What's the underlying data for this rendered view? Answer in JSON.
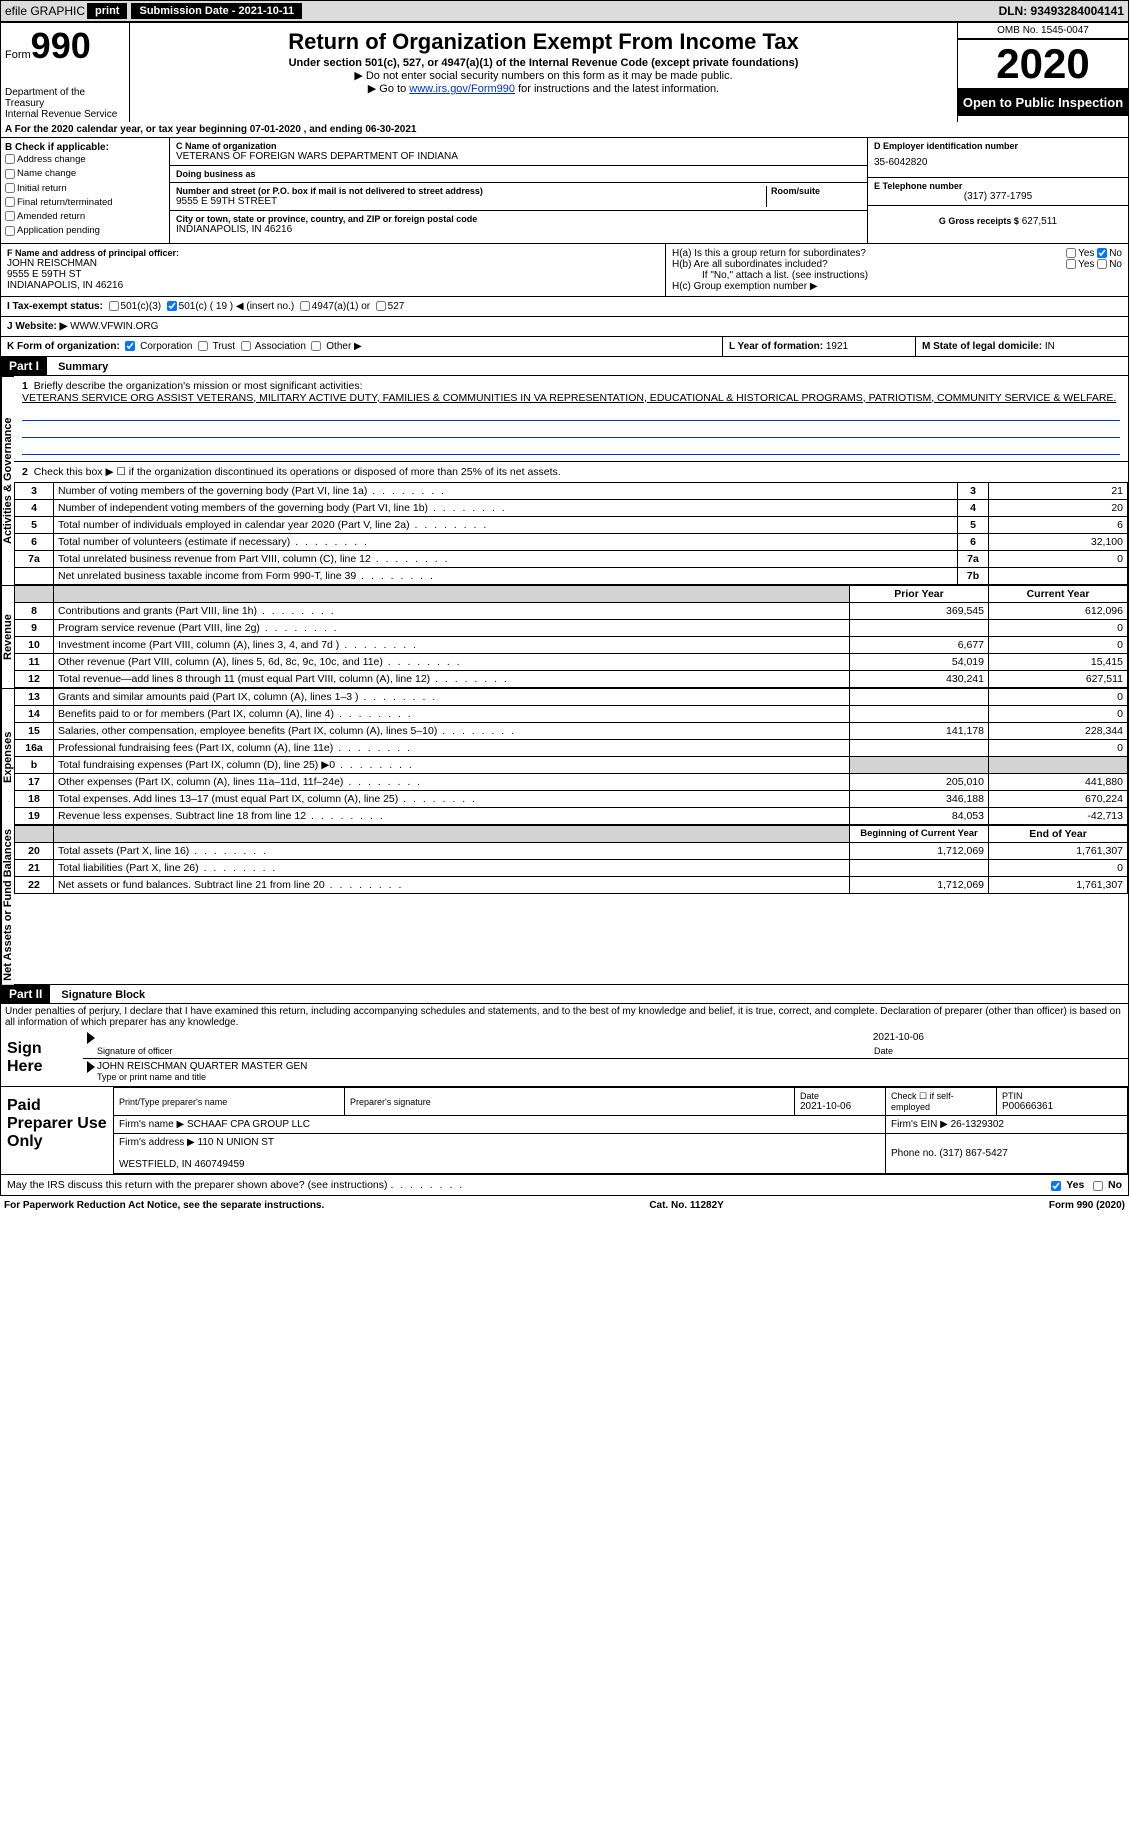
{
  "topbar": {
    "efile": "efile GRAPHIC",
    "print": "print",
    "sub_label": "Submission Date - 2021-10-11",
    "dln": "DLN: 93493284004141"
  },
  "header": {
    "form_label": "Form",
    "form_num": "990",
    "dept": "Department of the Treasury\nInternal Revenue Service",
    "title": "Return of Organization Exempt From Income Tax",
    "subtitle": "Under section 501(c), 527, or 4947(a)(1) of the Internal Revenue Code (except private foundations)",
    "note1": "▶ Do not enter social security numbers on this form as it may be made public.",
    "note2_pre": "▶ Go to ",
    "note2_link": "www.irs.gov/Form990",
    "note2_post": " for instructions and the latest information.",
    "omb": "OMB No. 1545-0047",
    "year": "2020",
    "open": "Open to Public Inspection"
  },
  "line_a": "A For the 2020 calendar year, or tax year beginning 07-01-2020   , and ending 06-30-2021",
  "box_b": {
    "title": "B Check if applicable:",
    "opts": [
      "Address change",
      "Name change",
      "Initial return",
      "Final return/terminated",
      "Amended return",
      "Application pending"
    ]
  },
  "box_c": {
    "name_lbl": "C Name of organization",
    "name": "VETERANS OF FOREIGN WARS DEPARTMENT OF INDIANA",
    "dba_lbl": "Doing business as",
    "dba": "",
    "addr_lbl": "Number and street (or P.O. box if mail is not delivered to street address)",
    "room_lbl": "Room/suite",
    "addr": "9555 E 59TH STREET",
    "city_lbl": "City or town, state or province, country, and ZIP or foreign postal code",
    "city": "INDIANAPOLIS, IN  46216"
  },
  "box_d": {
    "lbl": "D Employer identification number",
    "val": "35-6042820"
  },
  "box_e": {
    "lbl": "E Telephone number",
    "val": "(317) 377-1795"
  },
  "box_g": {
    "lbl": "G Gross receipts $",
    "val": "627,511"
  },
  "box_f": {
    "lbl": "F Name and address of principal officer:",
    "name": "JOHN REISCHMAN",
    "addr": "9555 E 59TH ST\nINDIANAPOLIS, IN  46216"
  },
  "box_h": {
    "a_lbl": "H(a)  Is this a group return for subordinates?",
    "a_yes": "Yes",
    "a_no": "No",
    "b_lbl": "H(b)  Are all subordinates included?",
    "b_note": "If \"No,\" attach a list. (see instructions)",
    "c_lbl": "H(c)  Group exemption number ▶"
  },
  "tax_status": {
    "lbl": "I    Tax-exempt status:",
    "o1": "501(c)(3)",
    "o2": "501(c) ( 19 ) ◀ (insert no.)",
    "o3": "4947(a)(1) or",
    "o4": "527"
  },
  "website": {
    "lbl": "J    Website: ▶",
    "val": "WWW.VFWIN.ORG"
  },
  "box_k": {
    "lbl": "K Form of organization:",
    "opts": [
      "Corporation",
      "Trust",
      "Association",
      "Other ▶"
    ]
  },
  "box_l": {
    "lbl": "L Year of formation:",
    "val": "1921"
  },
  "box_m": {
    "lbl": "M State of legal domicile:",
    "val": "IN"
  },
  "part1": {
    "header": "Part I",
    "title": "Summary",
    "side_gov": "Activities & Governance",
    "side_rev": "Revenue",
    "side_exp": "Expenses",
    "side_net": "Net Assets or Fund Balances",
    "q1": "Briefly describe the organization's mission or most significant activities:",
    "q1_ans": "VETERANS SERVICE ORG ASSIST VETERANS, MILITARY ACTIVE DUTY, FAMILIES & COMMUNITIES IN VA REPRESENTATION, EDUCATIONAL & HISTORICAL PROGRAMS, PATRIOTISM, COMMUNITY SERVICE & WELFARE.",
    "q2": "Check this box ▶ ☐  if the organization discontinued its operations or disposed of more than 25% of its net assets.",
    "rows_gov": [
      {
        "n": "3",
        "t": "Number of voting members of the governing body (Part VI, line 1a)",
        "l": "3",
        "v": "21"
      },
      {
        "n": "4",
        "t": "Number of independent voting members of the governing body (Part VI, line 1b)",
        "l": "4",
        "v": "20"
      },
      {
        "n": "5",
        "t": "Total number of individuals employed in calendar year 2020 (Part V, line 2a)",
        "l": "5",
        "v": "6"
      },
      {
        "n": "6",
        "t": "Total number of volunteers (estimate if necessary)",
        "l": "6",
        "v": "32,100"
      },
      {
        "n": "7a",
        "t": "Total unrelated business revenue from Part VIII, column (C), line 12",
        "l": "7a",
        "v": "0"
      },
      {
        "n": "",
        "t": "Net unrelated business taxable income from Form 990-T, line 39",
        "l": "7b",
        "v": ""
      }
    ],
    "col_prior": "Prior Year",
    "col_current": "Current Year",
    "rows_rev": [
      {
        "n": "8",
        "t": "Contributions and grants (Part VIII, line 1h)",
        "p": "369,545",
        "c": "612,096"
      },
      {
        "n": "9",
        "t": "Program service revenue (Part VIII, line 2g)",
        "p": "",
        "c": "0"
      },
      {
        "n": "10",
        "t": "Investment income (Part VIII, column (A), lines 3, 4, and 7d )",
        "p": "6,677",
        "c": "0"
      },
      {
        "n": "11",
        "t": "Other revenue (Part VIII, column (A), lines 5, 6d, 8c, 9c, 10c, and 11e)",
        "p": "54,019",
        "c": "15,415"
      },
      {
        "n": "12",
        "t": "Total revenue—add lines 8 through 11 (must equal Part VIII, column (A), line 12)",
        "p": "430,241",
        "c": "627,511"
      }
    ],
    "rows_exp": [
      {
        "n": "13",
        "t": "Grants and similar amounts paid (Part IX, column (A), lines 1–3 )",
        "p": "",
        "c": "0"
      },
      {
        "n": "14",
        "t": "Benefits paid to or for members (Part IX, column (A), line 4)",
        "p": "",
        "c": "0"
      },
      {
        "n": "15",
        "t": "Salaries, other compensation, employee benefits (Part IX, column (A), lines 5–10)",
        "p": "141,178",
        "c": "228,344"
      },
      {
        "n": "16a",
        "t": "Professional fundraising fees (Part IX, column (A), line 11e)",
        "p": "",
        "c": "0"
      },
      {
        "n": "b",
        "t": "Total fundraising expenses (Part IX, column (D), line 25) ▶0",
        "p": "GRAY",
        "c": "GRAY"
      },
      {
        "n": "17",
        "t": "Other expenses (Part IX, column (A), lines 11a–11d, 11f–24e)",
        "p": "205,010",
        "c": "441,880"
      },
      {
        "n": "18",
        "t": "Total expenses. Add lines 13–17 (must equal Part IX, column (A), line 25)",
        "p": "346,188",
        "c": "670,224"
      },
      {
        "n": "19",
        "t": "Revenue less expenses. Subtract line 18 from line 12",
        "p": "84,053",
        "c": "-42,713"
      }
    ],
    "col_begin": "Beginning of Current Year",
    "col_end": "End of Year",
    "rows_net": [
      {
        "n": "20",
        "t": "Total assets (Part X, line 16)",
        "p": "1,712,069",
        "c": "1,761,307"
      },
      {
        "n": "21",
        "t": "Total liabilities (Part X, line 26)",
        "p": "",
        "c": "0"
      },
      {
        "n": "22",
        "t": "Net assets or fund balances. Subtract line 21 from line 20",
        "p": "1,712,069",
        "c": "1,761,307"
      }
    ]
  },
  "part2": {
    "header": "Part II",
    "title": "Signature Block",
    "decl": "Under penalties of perjury, I declare that I have examined this return, including accompanying schedules and statements, and to the best of my knowledge and belief, it is true, correct, and complete. Declaration of preparer (other than officer) is based on all information of which preparer has any knowledge.",
    "sign_here": "Sign Here",
    "sig_officer": "Signature of officer",
    "sig_date": "2021-10-06",
    "date_lbl": "Date",
    "officer_name": "JOHN REISCHMAN QUARTER MASTER GEN",
    "officer_sub": "Type or print name and title",
    "paid": "Paid Preparer Use Only",
    "prep_name_lbl": "Print/Type preparer's name",
    "prep_sig_lbl": "Preparer's signature",
    "prep_date_lbl": "Date",
    "prep_date": "2021-10-06",
    "prep_check_lbl": "Check ☐ if self-employed",
    "ptin_lbl": "PTIN",
    "ptin": "P00666361",
    "firm_lbl": "Firm's name   ▶",
    "firm": "SCHAAF CPA GROUP LLC",
    "firm_ein_lbl": "Firm's EIN ▶",
    "firm_ein": "26-1329302",
    "firm_addr_lbl": "Firm's address ▶",
    "firm_addr": "110 N UNION ST\n\nWESTFIELD, IN  460749459",
    "firm_phone_lbl": "Phone no.",
    "firm_phone": "(317) 867-5427",
    "discuss": "May the IRS discuss this return with the preparer shown above? (see instructions)",
    "yes": "Yes",
    "no": "No"
  },
  "footer": {
    "left": "For Paperwork Reduction Act Notice, see the separate instructions.",
    "mid": "Cat. No. 11282Y",
    "right": "Form 990 (2020)"
  }
}
